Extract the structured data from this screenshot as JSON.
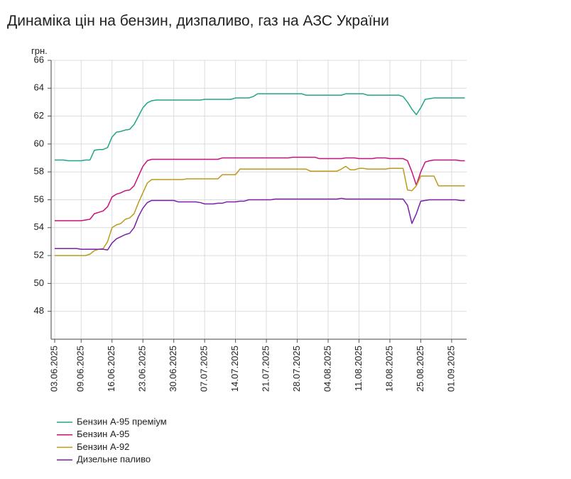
{
  "chart_data": {
    "type": "line",
    "title": "Динаміка цін на бензин, дизпаливо, газ на АЗС України",
    "y_label": "грн.",
    "x": [
      "03.06.2025",
      "04.06.2025",
      "05.06.2025",
      "06.06.2025",
      "07.06.2025",
      "08.06.2025",
      "09.06.2025",
      "10.06.2025",
      "11.06.2025",
      "12.06.2025",
      "13.06.2025",
      "14.06.2025",
      "15.06.2025",
      "16.06.2025",
      "17.06.2025",
      "18.06.2025",
      "19.06.2025",
      "20.06.2025",
      "21.06.2025",
      "22.06.2025",
      "23.06.2025",
      "24.06.2025",
      "25.06.2025",
      "26.06.2025",
      "27.06.2025",
      "28.06.2025",
      "29.06.2025",
      "30.06.2025",
      "01.07.2025",
      "02.07.2025",
      "03.07.2025",
      "04.07.2025",
      "05.07.2025",
      "06.07.2025",
      "07.07.2025",
      "08.07.2025",
      "09.07.2025",
      "10.07.2025",
      "11.07.2025",
      "12.07.2025",
      "13.07.2025",
      "14.07.2025",
      "15.07.2025",
      "16.07.2025",
      "17.07.2025",
      "18.07.2025",
      "19.07.2025",
      "20.07.2025",
      "21.07.2025",
      "22.07.2025",
      "23.07.2025",
      "24.07.2025",
      "25.07.2025",
      "26.07.2025",
      "27.07.2025",
      "28.07.2025",
      "29.07.2025",
      "30.07.2025",
      "31.07.2025",
      "01.08.2025",
      "02.08.2025",
      "03.08.2025",
      "04.08.2025",
      "05.08.2025",
      "06.08.2025",
      "07.08.2025",
      "08.08.2025",
      "09.08.2025",
      "10.08.2025",
      "11.08.2025",
      "12.08.2025",
      "13.08.2025",
      "14.08.2025",
      "15.08.2025",
      "16.08.2025",
      "17.08.2025",
      "18.08.2025",
      "19.08.2025",
      "20.08.2025",
      "21.08.2025",
      "22.08.2025",
      "23.08.2025",
      "24.08.2025",
      "25.08.2025",
      "26.08.2025",
      "27.08.2025",
      "28.08.2025",
      "29.08.2025",
      "30.08.2025",
      "31.08.2025",
      "01.09.2025",
      "02.09.2025",
      "03.09.2025",
      "04.09.2025"
    ],
    "xticks": [
      "03.06.2025",
      "09.06.2025",
      "16.06.2025",
      "23.06.2025",
      "30.06.2025",
      "07.07.2025",
      "14.07.2025",
      "21.07.2025",
      "28.07.2025",
      "04.08.2025",
      "11.08.2025",
      "18.08.2025",
      "25.08.2025",
      "01.09.2025"
    ],
    "ylim": [
      46,
      66
    ],
    "yticks": [
      48,
      50,
      52,
      54,
      56,
      58,
      60,
      62,
      64,
      66
    ],
    "grid": true,
    "legend": "bottom",
    "series": [
      {
        "name": "Бензин А-95 преміум",
        "color": "#1fa58a",
        "values": [
          58.85,
          58.85,
          58.85,
          58.8,
          58.8,
          58.8,
          58.8,
          58.85,
          58.85,
          59.55,
          59.6,
          59.6,
          59.75,
          60.5,
          60.85,
          60.9,
          61.0,
          61.05,
          61.4,
          62.0,
          62.6,
          62.95,
          63.1,
          63.15,
          63.15,
          63.15,
          63.15,
          63.15,
          63.15,
          63.15,
          63.15,
          63.15,
          63.15,
          63.15,
          63.2,
          63.2,
          63.2,
          63.2,
          63.2,
          63.2,
          63.2,
          63.3,
          63.3,
          63.3,
          63.3,
          63.4,
          63.6,
          63.6,
          63.6,
          63.6,
          63.6,
          63.6,
          63.6,
          63.6,
          63.6,
          63.6,
          63.6,
          63.5,
          63.5,
          63.5,
          63.5,
          63.5,
          63.5,
          63.5,
          63.5,
          63.5,
          63.6,
          63.6,
          63.6,
          63.6,
          63.6,
          63.5,
          63.5,
          63.5,
          63.5,
          63.5,
          63.5,
          63.5,
          63.5,
          63.4,
          63.0,
          62.5,
          62.1,
          62.6,
          63.2,
          63.25,
          63.3,
          63.3,
          63.3,
          63.3,
          63.3,
          63.3,
          63.3,
          63.3
        ]
      },
      {
        "name": "Бензин А-95",
        "color": "#c8117a",
        "values": [
          54.5,
          54.5,
          54.5,
          54.5,
          54.5,
          54.5,
          54.5,
          54.55,
          54.6,
          55.0,
          55.1,
          55.2,
          55.5,
          56.2,
          56.4,
          56.5,
          56.65,
          56.7,
          57.0,
          57.7,
          58.4,
          58.8,
          58.9,
          58.9,
          58.9,
          58.9,
          58.9,
          58.9,
          58.9,
          58.9,
          58.9,
          58.9,
          58.9,
          58.9,
          58.9,
          58.9,
          58.9,
          58.9,
          59.0,
          59.0,
          59.0,
          59.0,
          59.0,
          59.0,
          59.0,
          59.0,
          59.0,
          59.0,
          59.0,
          59.0,
          59.0,
          59.0,
          59.0,
          59.0,
          59.05,
          59.05,
          59.05,
          59.05,
          59.05,
          59.05,
          58.95,
          58.95,
          58.95,
          58.95,
          58.95,
          58.95,
          59.0,
          59.0,
          59.0,
          58.95,
          58.95,
          58.95,
          58.95,
          59.0,
          59.0,
          59.0,
          58.95,
          58.95,
          58.95,
          58.95,
          58.8,
          58.0,
          57.05,
          58.0,
          58.7,
          58.8,
          58.85,
          58.85,
          58.85,
          58.85,
          58.85,
          58.85,
          58.8,
          58.8
        ]
      },
      {
        "name": "Бензин А-92",
        "color": "#bd9a1e",
        "values": [
          52.0,
          52.0,
          52.0,
          52.0,
          52.0,
          52.0,
          52.0,
          52.0,
          52.1,
          52.35,
          52.45,
          52.5,
          53.0,
          54.0,
          54.2,
          54.3,
          54.6,
          54.7,
          55.0,
          55.8,
          56.5,
          57.2,
          57.45,
          57.45,
          57.45,
          57.45,
          57.45,
          57.45,
          57.45,
          57.45,
          57.5,
          57.5,
          57.5,
          57.5,
          57.5,
          57.5,
          57.5,
          57.5,
          57.8,
          57.8,
          57.8,
          57.8,
          58.2,
          58.2,
          58.2,
          58.2,
          58.2,
          58.2,
          58.2,
          58.2,
          58.2,
          58.2,
          58.2,
          58.2,
          58.2,
          58.2,
          58.2,
          58.2,
          58.05,
          58.05,
          58.05,
          58.05,
          58.05,
          58.05,
          58.05,
          58.2,
          58.4,
          58.15,
          58.15,
          58.25,
          58.25,
          58.2,
          58.2,
          58.2,
          58.2,
          58.2,
          58.25,
          58.25,
          58.25,
          58.25,
          56.7,
          56.65,
          57.0,
          57.7,
          57.7,
          57.7,
          57.7,
          57.0,
          57.0,
          57.0,
          57.0,
          57.0,
          57.0,
          57.0
        ]
      },
      {
        "name": "Дизельне паливо",
        "color": "#7b1fa8",
        "values": [
          52.5,
          52.5,
          52.5,
          52.5,
          52.5,
          52.5,
          52.45,
          52.45,
          52.45,
          52.45,
          52.45,
          52.45,
          52.4,
          52.9,
          53.2,
          53.35,
          53.5,
          53.6,
          54.0,
          54.8,
          55.4,
          55.8,
          55.95,
          55.95,
          55.95,
          55.95,
          55.95,
          55.95,
          55.85,
          55.85,
          55.85,
          55.85,
          55.85,
          55.8,
          55.7,
          55.7,
          55.7,
          55.75,
          55.75,
          55.85,
          55.85,
          55.85,
          55.9,
          55.9,
          56.0,
          56.0,
          56.0,
          56.0,
          56.0,
          56.0,
          56.05,
          56.05,
          56.05,
          56.05,
          56.05,
          56.05,
          56.05,
          56.05,
          56.05,
          56.05,
          56.05,
          56.05,
          56.05,
          56.05,
          56.05,
          56.1,
          56.05,
          56.05,
          56.05,
          56.05,
          56.05,
          56.05,
          56.05,
          56.05,
          56.05,
          56.05,
          56.05,
          56.05,
          56.05,
          56.05,
          55.6,
          54.3,
          55.0,
          55.9,
          55.95,
          56.0,
          56.0,
          56.0,
          56.0,
          56.0,
          56.0,
          56.0,
          55.95,
          55.95
        ]
      }
    ]
  }
}
